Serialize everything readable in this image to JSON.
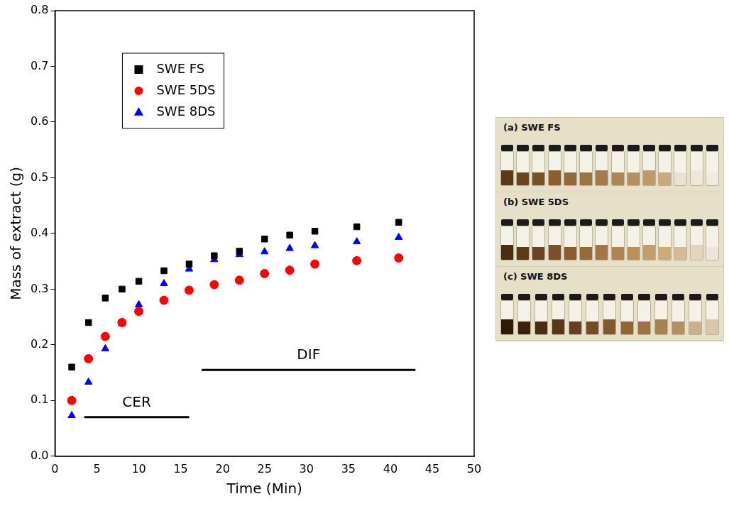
{
  "chart_data": {
    "type": "scatter",
    "x_label": "Time (Min)",
    "y_label": "Mass of extract (g)",
    "xlim": [
      0,
      50
    ],
    "xticks": [
      0,
      5,
      10,
      15,
      20,
      25,
      30,
      35,
      40,
      45,
      50
    ],
    "ylim": [
      0,
      0.8
    ],
    "yticks": [
      {
        "value": 0,
        "label": "0.0"
      },
      0.1,
      0.2,
      0.3,
      0.4,
      0.5,
      0.6,
      0.7,
      0.8
    ],
    "grid": false,
    "legend": "upper left",
    "x": [
      2,
      4,
      6,
      8,
      10,
      13,
      16,
      19,
      22,
      25,
      28,
      31,
      36,
      41
    ],
    "series": [
      {
        "name": "SWE FS",
        "color": "#000000",
        "marker": "square",
        "values": [
          0.16,
          0.24,
          0.284,
          0.3,
          0.314,
          0.333,
          0.345,
          0.36,
          0.368,
          0.39,
          0.397,
          0.404,
          0.412,
          0.42
        ]
      },
      {
        "name": "SWE 5DS",
        "color": "#ff0000",
        "marker": "circle",
        "values": [
          0.1,
          0.175,
          0.215,
          0.24,
          0.26,
          0.28,
          0.298,
          0.308,
          0.316,
          0.328,
          0.334,
          0.345,
          0.351,
          0.356
        ]
      },
      {
        "name": "SWE 8DS",
        "color": "#0000ff",
        "marker": "triangle",
        "values": [
          0.073,
          0.133,
          0.193,
          0.238,
          0.272,
          0.31,
          0.336,
          0.353,
          0.362,
          0.367,
          0.373,
          0.378,
          0.385,
          0.393
        ]
      }
    ],
    "annotations": [
      {
        "text": "CER",
        "x": [
          3.5,
          16
        ],
        "y": 0.07
      },
      {
        "text": "DIF",
        "x": [
          17.5,
          43
        ],
        "y": 0.155
      }
    ]
  },
  "inset": {
    "labels": [
      "(a) SWE FS",
      "(b) SWE 5DS",
      "(c) SWE 8DS"
    ]
  }
}
